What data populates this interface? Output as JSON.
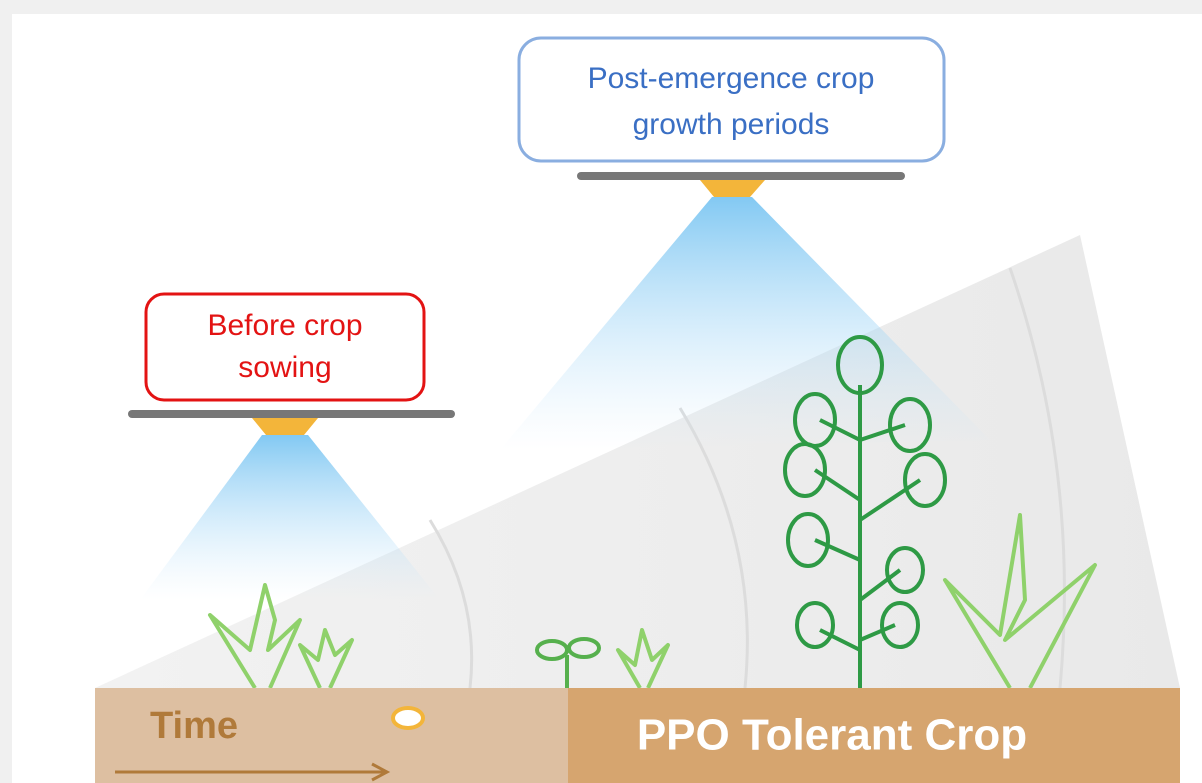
{
  "labels": {
    "post_emergence": {
      "lines": [
        "Post-emergence crop",
        "growth periods"
      ]
    },
    "before_sowing": {
      "lines": [
        "Before crop",
        "sowing"
      ]
    }
  },
  "soil": {
    "time": "Time",
    "crop": "PPO Tolerant Crop"
  }
}
